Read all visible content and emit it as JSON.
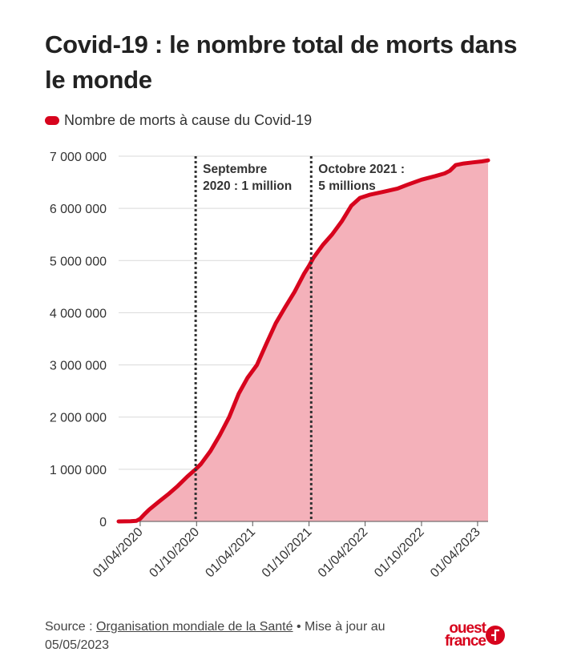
{
  "title": "Covid-19 : le nombre total de morts dans le monde",
  "legend_label": "Nombre de morts à cause du Covid-19",
  "colors": {
    "line": "#d7041d",
    "area": "#f4b1ba",
    "grid": "#d9d9d9",
    "annotation": "#333333",
    "text": "#222222"
  },
  "chart_data": {
    "type": "area",
    "series": [
      {
        "name": "Nombre de morts à cause du Covid-19",
        "points": [
          [
            "2020-01-22",
            0
          ],
          [
            "2020-03-01",
            3000
          ],
          [
            "2020-03-20",
            12000
          ],
          [
            "2020-04-01",
            50000
          ],
          [
            "2020-04-15",
            140000
          ],
          [
            "2020-05-01",
            230000
          ],
          [
            "2020-06-01",
            380000
          ],
          [
            "2020-07-01",
            520000
          ],
          [
            "2020-08-01",
            680000
          ],
          [
            "2020-09-01",
            860000
          ],
          [
            "2020-09-28",
            1000000
          ],
          [
            "2020-10-15",
            1100000
          ],
          [
            "2020-11-15",
            1350000
          ],
          [
            "2020-12-15",
            1650000
          ],
          [
            "2021-01-15",
            2000000
          ],
          [
            "2021-02-15",
            2450000
          ],
          [
            "2021-03-15",
            2750000
          ],
          [
            "2021-04-15",
            3000000
          ],
          [
            "2021-05-15",
            3400000
          ],
          [
            "2021-06-15",
            3800000
          ],
          [
            "2021-07-15",
            4100000
          ],
          [
            "2021-08-15",
            4400000
          ],
          [
            "2021-09-15",
            4750000
          ],
          [
            "2021-10-01",
            4900000
          ],
          [
            "2021-10-15",
            5050000
          ],
          [
            "2021-11-15",
            5300000
          ],
          [
            "2021-12-15",
            5500000
          ],
          [
            "2022-01-15",
            5750000
          ],
          [
            "2022-02-15",
            6050000
          ],
          [
            "2022-03-15",
            6200000
          ],
          [
            "2022-04-15",
            6260000
          ],
          [
            "2022-06-01",
            6320000
          ],
          [
            "2022-07-15",
            6380000
          ],
          [
            "2022-08-15",
            6450000
          ],
          [
            "2022-10-01",
            6550000
          ],
          [
            "2022-11-15",
            6620000
          ],
          [
            "2022-12-15",
            6670000
          ],
          [
            "2023-01-01",
            6720000
          ],
          [
            "2023-01-20",
            6830000
          ],
          [
            "2023-02-15",
            6860000
          ],
          [
            "2023-03-15",
            6880000
          ],
          [
            "2023-04-15",
            6900000
          ],
          [
            "2023-05-05",
            6920000
          ]
        ]
      }
    ],
    "x_ticks": [
      [
        "2020-04-01",
        "01/04/2020"
      ],
      [
        "2020-10-01",
        "01/10/2020"
      ],
      [
        "2021-04-01",
        "01/04/2021"
      ],
      [
        "2021-10-01",
        "01/10/2021"
      ],
      [
        "2022-04-01",
        "01/04/2022"
      ],
      [
        "2022-10-01",
        "01/10/2022"
      ],
      [
        "2023-04-01",
        "01/04/2023"
      ]
    ],
    "xlim": [
      "2020-01-22",
      "2023-05-05"
    ],
    "y_ticks": [
      [
        0,
        "0"
      ],
      [
        1000000,
        "1 000 000"
      ],
      [
        2000000,
        "2 000 000"
      ],
      [
        3000000,
        "3 000 000"
      ],
      [
        4000000,
        "4 000 000"
      ],
      [
        5000000,
        "5 000 000"
      ],
      [
        6000000,
        "6 000 000"
      ],
      [
        7000000,
        "7 000 000"
      ]
    ],
    "ylim": [
      0,
      7000000
    ],
    "grid": "horizontal",
    "annotations": [
      {
        "x": "2020-09-28",
        "lines": [
          "Septembre",
          "2020 : 1 million"
        ]
      },
      {
        "x": "2021-10-08",
        "lines": [
          "Octobre 2021 :",
          "5 millions"
        ]
      }
    ]
  },
  "footer": {
    "prefix": "Source : ",
    "link": "Organisation mondiale de la Santé",
    "suffix": " • Mise à jour au",
    "date": "05/05/2023"
  },
  "logo": {
    "line1": "ouest",
    "line2": "france"
  }
}
